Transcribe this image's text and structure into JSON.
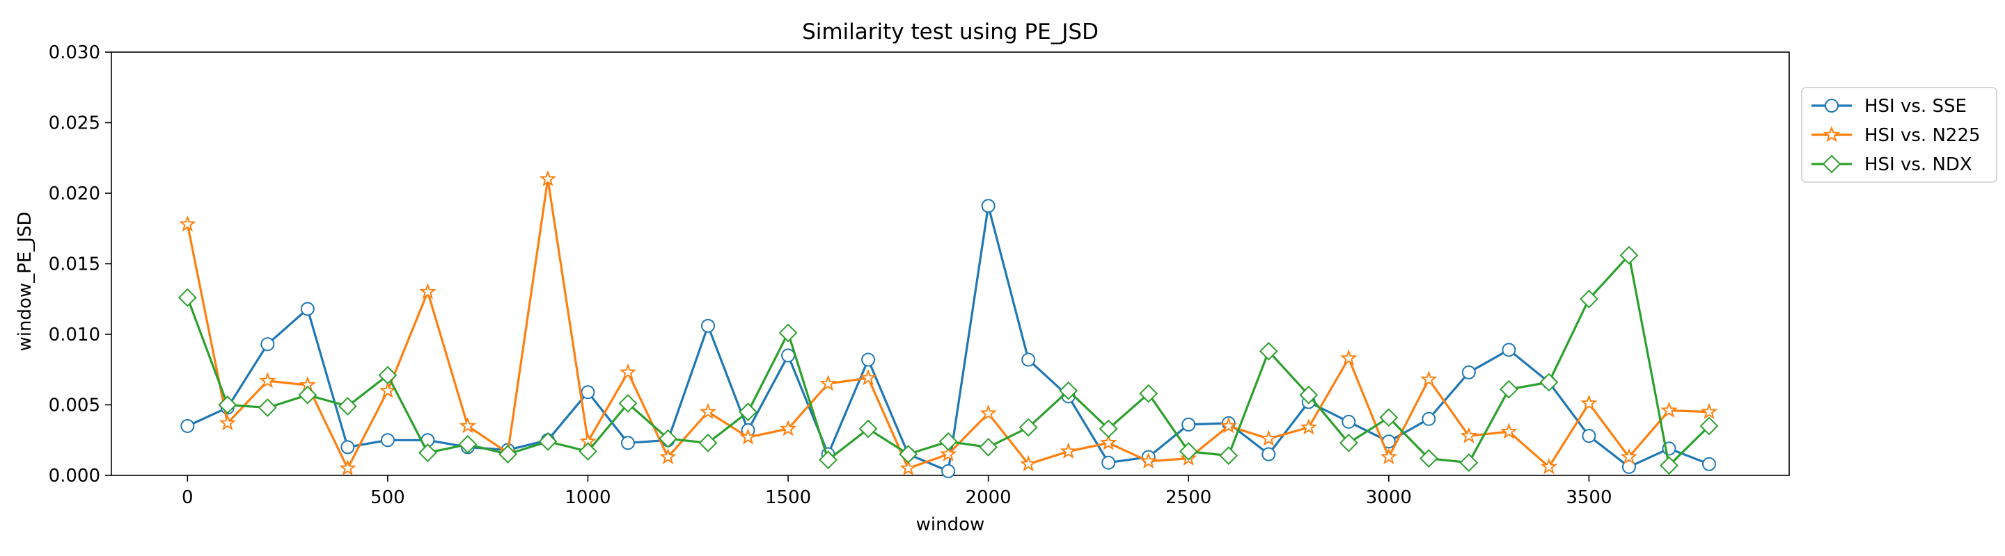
{
  "chart_data": {
    "type": "line",
    "title": "Similarity test using PE_JSD",
    "xlabel": "window",
    "ylabel": "window_PE_JSD",
    "xlim": [
      -190,
      4000
    ],
    "ylim": [
      0,
      0.03
    ],
    "xticks": [
      0,
      500,
      1000,
      1500,
      2000,
      2500,
      3000,
      3500
    ],
    "yticks": [
      0.0,
      0.005,
      0.01,
      0.015,
      0.02,
      0.025,
      0.03
    ],
    "ytick_labels": [
      "0.000",
      "0.005",
      "0.010",
      "0.015",
      "0.020",
      "0.025",
      "0.030"
    ],
    "grid": false,
    "legend_position": "outside-right",
    "x": [
      0,
      100,
      200,
      300,
      400,
      500,
      600,
      700,
      800,
      900,
      1000,
      1100,
      1200,
      1300,
      1400,
      1500,
      1600,
      1700,
      1800,
      1900,
      2000,
      2100,
      2200,
      2300,
      2400,
      2500,
      2600,
      2700,
      2800,
      2900,
      3000,
      3100,
      3200,
      3300,
      3400,
      3500,
      3600,
      3700,
      3800
    ],
    "series": [
      {
        "name": "HSI vs. SSE",
        "color": "#1f77b4",
        "marker": "circle",
        "values": [
          0.0035,
          0.0048,
          0.0093,
          0.0118,
          0.002,
          0.0025,
          0.0025,
          0.002,
          0.0018,
          0.0025,
          0.0059,
          0.0023,
          0.0025,
          0.0106,
          0.0032,
          0.0085,
          0.0015,
          0.0082,
          0.0015,
          0.0003,
          0.0191,
          0.0082,
          0.0056,
          0.0009,
          0.0013,
          0.0036,
          0.0037,
          0.0015,
          0.0052,
          0.0038,
          0.0024,
          0.004,
          0.0073,
          0.0089,
          0.0066,
          0.0028,
          0.0006,
          0.0019,
          0.0008
        ]
      },
      {
        "name": "HSI vs. N225",
        "color": "#ff7f0e",
        "marker": "star",
        "values": [
          0.0178,
          0.0037,
          0.0067,
          0.0064,
          0.0005,
          0.006,
          0.013,
          0.0035,
          0.0016,
          0.021,
          0.0024,
          0.0073,
          0.0013,
          0.0045,
          0.0027,
          0.0033,
          0.0065,
          0.0069,
          0.0005,
          0.0015,
          0.0044,
          0.0008,
          0.0017,
          0.0023,
          0.001,
          0.0012,
          0.0035,
          0.0026,
          0.0034,
          0.0083,
          0.0013,
          0.0068,
          0.0028,
          0.0031,
          0.0006,
          0.0051,
          0.0013,
          0.0046,
          0.0045
        ]
      },
      {
        "name": "HSI vs. NDX",
        "color": "#2ca02c",
        "marker": "diamond",
        "values": [
          0.0126,
          0.005,
          0.0048,
          0.0057,
          0.0049,
          0.0071,
          0.0016,
          0.0022,
          0.0015,
          0.0024,
          0.0017,
          0.0051,
          0.0026,
          0.0023,
          0.0045,
          0.0101,
          0.0011,
          0.0033,
          0.0015,
          0.0024,
          0.002,
          0.0034,
          0.006,
          0.0033,
          0.0058,
          0.0017,
          0.0014,
          0.0088,
          0.0057,
          0.0023,
          0.0041,
          0.0012,
          0.0009,
          0.0061,
          0.0066,
          0.0125,
          0.0156,
          0.0007,
          0.0035
        ]
      }
    ]
  }
}
